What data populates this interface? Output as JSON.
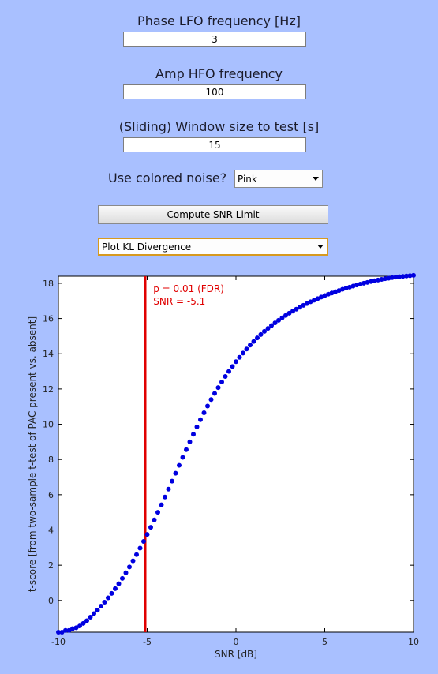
{
  "controls": {
    "phase_label": "Phase LFO frequency [Hz]",
    "phase_value": "3",
    "amp_label": "Amp HFO frequency",
    "amp_value": "100",
    "window_label": "(Sliding) Window size to test [s]",
    "window_value": "15",
    "noise_label": "Use colored noise?",
    "noise_value": "Pink",
    "compute_label": "Compute SNR Limit",
    "plot_value": "Plot KL Divergence"
  },
  "colors": {
    "background": "#a9c0ff",
    "points": "#0000e0",
    "threshold": "#e00000"
  },
  "chart_data": {
    "type": "scatter",
    "xlabel": "SNR [dB]",
    "ylabel": "t-score [from two-sample t-test of PAC present vs. absent]",
    "xlim": [
      -10,
      10
    ],
    "ylim": [
      -1.8,
      18.4
    ],
    "xticks": [
      -10,
      -5,
      0,
      5,
      10
    ],
    "yticks": [
      0,
      2,
      4,
      6,
      8,
      10,
      12,
      14,
      16,
      18
    ],
    "grid": false,
    "threshold": {
      "x": -5.1,
      "annotation_line1": "p = 0.01 (FDR)",
      "annotation_line2": "SNR = -5.1"
    },
    "series": [
      {
        "x": [
          -10,
          -9.8,
          -9.6,
          -9.4,
          -9.2,
          -9.0,
          -8.8,
          -8.6,
          -8.4,
          -8.2,
          -8.0,
          -7.8,
          -7.6,
          -7.4,
          -7.2,
          -7.0,
          -6.8,
          -6.6,
          -6.4,
          -6.2,
          -6.0,
          -5.8,
          -5.6,
          -5.4,
          -5.2,
          -5.0,
          -4.8,
          -4.6,
          -4.4,
          -4.2,
          -4.0,
          -3.8,
          -3.6,
          -3.4,
          -3.2,
          -3.0,
          -2.8,
          -2.6,
          -2.4,
          -2.2,
          -2.0,
          -1.8,
          -1.6,
          -1.4,
          -1.2,
          -1.0,
          -0.8,
          -0.6,
          -0.4,
          -0.2,
          0.0,
          0.2,
          0.4,
          0.6,
          0.8,
          1.0,
          1.2,
          1.4,
          1.6,
          1.8,
          2.0,
          2.2,
          2.4,
          2.6,
          2.8,
          3.0,
          3.2,
          3.4,
          3.6,
          3.8,
          4.0,
          4.2,
          4.4,
          4.6,
          4.8,
          5.0,
          5.2,
          5.4,
          5.6,
          5.8,
          6.0,
          6.2,
          6.4,
          6.6,
          6.8,
          7.0,
          7.2,
          7.4,
          7.6,
          7.8,
          8.0,
          8.2,
          8.4,
          8.6,
          8.8,
          9.0,
          9.2,
          9.4,
          9.6,
          9.8,
          10.0
        ],
        "y": [
          -1.8,
          -1.8,
          -1.7,
          -1.7,
          -1.6,
          -1.55,
          -1.45,
          -1.3,
          -1.15,
          -0.95,
          -0.75,
          -0.55,
          -0.32,
          -0.1,
          0.15,
          0.4,
          0.67,
          0.95,
          1.25,
          1.57,
          1.9,
          2.25,
          2.6,
          2.97,
          3.35,
          3.75,
          4.15,
          4.57,
          5.0,
          5.43,
          5.87,
          6.32,
          6.77,
          7.22,
          7.67,
          8.12,
          8.56,
          9.0,
          9.43,
          9.85,
          10.26,
          10.65,
          11.03,
          11.4,
          11.75,
          12.08,
          12.4,
          12.71,
          13.0,
          13.28,
          13.55,
          13.8,
          14.04,
          14.27,
          14.49,
          14.7,
          14.9,
          15.09,
          15.27,
          15.44,
          15.6,
          15.75,
          15.9,
          16.04,
          16.17,
          16.3,
          16.42,
          16.53,
          16.64,
          16.75,
          16.85,
          16.95,
          17.04,
          17.13,
          17.22,
          17.3,
          17.38,
          17.45,
          17.52,
          17.59,
          17.66,
          17.72,
          17.78,
          17.84,
          17.9,
          17.95,
          18.0,
          18.05,
          18.1,
          18.14,
          18.18,
          18.22,
          18.26,
          18.29,
          18.32,
          18.35,
          18.37,
          18.39,
          18.41,
          18.43,
          18.45
        ]
      }
    ]
  }
}
